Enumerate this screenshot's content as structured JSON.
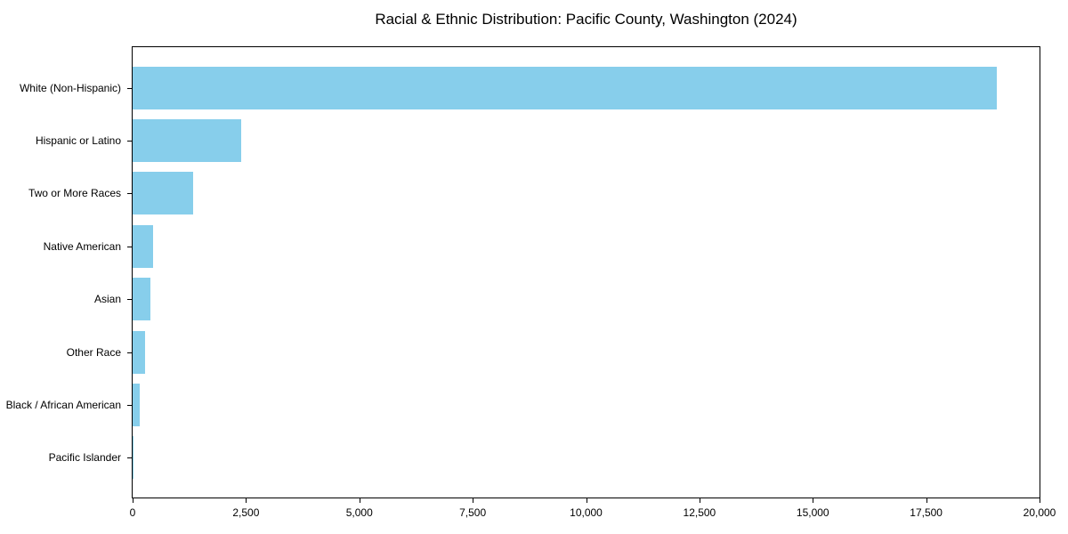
{
  "chart_data": {
    "type": "bar",
    "orientation": "horizontal",
    "title": "Racial & Ethnic Distribution: Pacific County, Washington (2024)",
    "categories": [
      "White (Non-Hispanic)",
      "Hispanic or Latino",
      "Two or More Races",
      "Native American",
      "Asian",
      "Other Race",
      "Black / African American",
      "Pacific Islander"
    ],
    "values": [
      19050,
      2400,
      1330,
      450,
      400,
      275,
      150,
      15
    ],
    "xlabel": "",
    "ylabel": "",
    "xlim": [
      0,
      20000
    ],
    "xticks": [
      0,
      2500,
      5000,
      7500,
      10000,
      12500,
      15000,
      17500,
      20000
    ],
    "xtick_labels": [
      "0",
      "2,500",
      "5,000",
      "7,500",
      "10,000",
      "12,500",
      "15,000",
      "17,500",
      "20,000"
    ],
    "bar_color": "#87CEEB",
    "background_color": "#ffffff",
    "grid": false,
    "legend": null
  }
}
